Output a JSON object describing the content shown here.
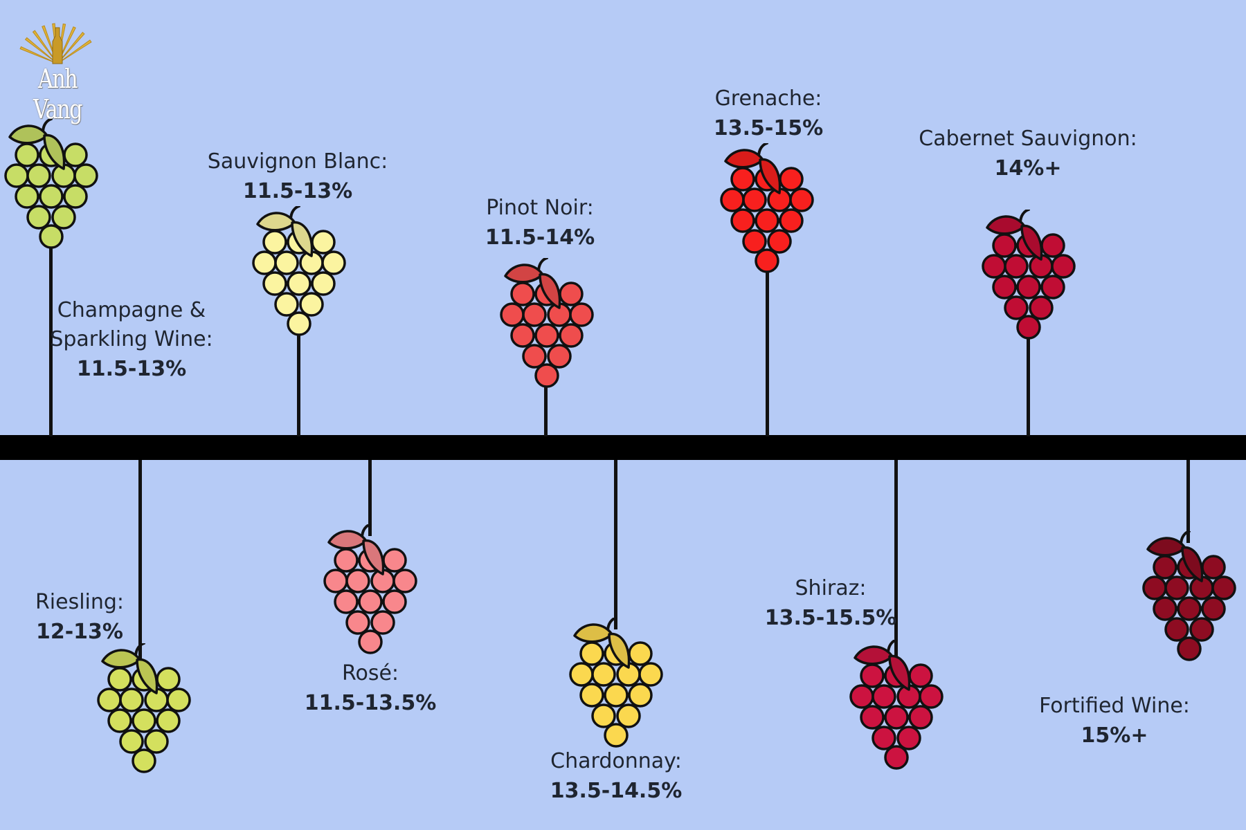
{
  "logo": {
    "text": "Anh Vang",
    "color": "#e0b43a"
  },
  "wines": [
    {
      "id": "champagne",
      "name_lines": [
        "Champagne &",
        "Sparkling Wine:"
      ],
      "abv": "11.5-13%",
      "color": "#c7dd66"
    },
    {
      "id": "riesling",
      "name_lines": [
        "Riesling:"
      ],
      "abv": "12-13%",
      "color": "#d4e05e"
    },
    {
      "id": "sauvignon-blanc",
      "name_lines": [
        "Sauvignon Blanc:"
      ],
      "abv": "11.5-13%",
      "color": "#fbf4a0"
    },
    {
      "id": "rose",
      "name_lines": [
        "Rosé:"
      ],
      "abv": "11.5-13.5%",
      "color": "#f8878c"
    },
    {
      "id": "pinot-noir",
      "name_lines": [
        "Pinot Noir:"
      ],
      "abv": "11.5-14%",
      "color": "#ef4d4d"
    },
    {
      "id": "chardonnay",
      "name_lines": [
        "Chardonnay:"
      ],
      "abv": "13.5-14.5%",
      "color": "#fbd84f"
    },
    {
      "id": "grenache",
      "name_lines": [
        "Grenache:"
      ],
      "abv": "13.5-15%",
      "color": "#f8201e"
    },
    {
      "id": "shiraz",
      "name_lines": [
        "Shiraz:"
      ],
      "abv": "13.5-15.5%",
      "color": "#cc1340"
    },
    {
      "id": "cabernet-sauvignon",
      "name_lines": [
        "Cabernet Sauvignon:"
      ],
      "abv": "14%+",
      "color": "#c00d34"
    },
    {
      "id": "fortified",
      "name_lines": [
        "Fortified Wine:"
      ],
      "abv": "15%+",
      "color": "#8e0c22"
    }
  ]
}
